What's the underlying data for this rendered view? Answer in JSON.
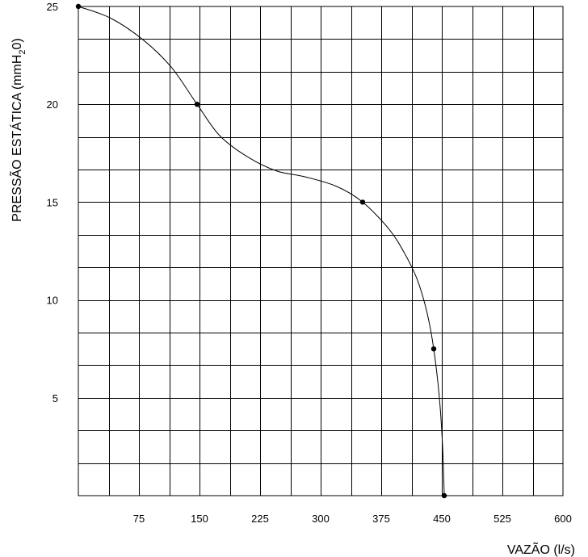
{
  "chart_data": {
    "type": "line",
    "title": "",
    "xlabel": "VAZÃO (l/s)",
    "ylabel_parts": {
      "before": "PRESSÃO ESTÁTICA (mmH",
      "subscript": "2",
      "after": "0)"
    },
    "xlim": [
      0,
      600
    ],
    "ylim": [
      0,
      25
    ],
    "x_grid_step": 37.5,
    "y_grid_step": 1.6667,
    "x_ticks": [
      "75",
      "150",
      "225",
      "300",
      "375",
      "450",
      "525",
      "600"
    ],
    "x_tick_values": [
      75,
      150,
      225,
      300,
      375,
      450,
      525,
      600
    ],
    "y_ticks": [
      "5",
      "10",
      "15",
      "20",
      "25"
    ],
    "y_tick_values": [
      5,
      10,
      15,
      20,
      25
    ],
    "grid": true,
    "legend": "none",
    "line_color": "#000000",
    "series": [
      {
        "points": [
          {
            "x": 0,
            "y": 25
          },
          {
            "x": 147,
            "y": 20
          },
          {
            "x": 352,
            "y": 15
          },
          {
            "x": 440,
            "y": 7.5
          },
          {
            "x": 453,
            "y": 0
          }
        ],
        "curve": [
          {
            "x": 0,
            "y": 25
          },
          {
            "x": 40,
            "y": 24.4
          },
          {
            "x": 80,
            "y": 23.3
          },
          {
            "x": 115,
            "y": 21.9
          },
          {
            "x": 147,
            "y": 20
          },
          {
            "x": 175,
            "y": 18.4
          },
          {
            "x": 210,
            "y": 17.3
          },
          {
            "x": 245,
            "y": 16.6
          },
          {
            "x": 280,
            "y": 16.3
          },
          {
            "x": 320,
            "y": 15.8
          },
          {
            "x": 352,
            "y": 15
          },
          {
            "x": 385,
            "y": 13.6
          },
          {
            "x": 405,
            "y": 12.3
          },
          {
            "x": 420,
            "y": 11.0
          },
          {
            "x": 432,
            "y": 9.3
          },
          {
            "x": 440,
            "y": 7.5
          },
          {
            "x": 447,
            "y": 5.0
          },
          {
            "x": 451,
            "y": 2.5
          },
          {
            "x": 453,
            "y": 0
          }
        ]
      }
    ]
  }
}
